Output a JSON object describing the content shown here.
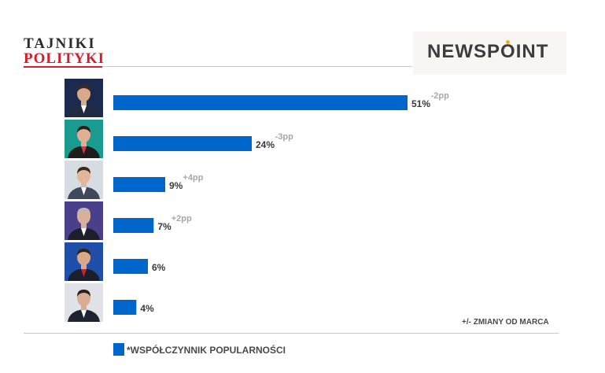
{
  "branding": {
    "left_logo_line1": "TAJNIKI",
    "left_logo_line2": "POLITYKI",
    "right_logo": "NEWSPOINT"
  },
  "chart_data": {
    "type": "bar",
    "orientation": "horizontal",
    "categories": [
      "",
      "",
      "",
      "",
      "",
      ""
    ],
    "values": [
      51,
      24,
      9,
      7,
      6,
      4
    ],
    "value_labels": [
      "51%",
      "24%",
      "9%",
      "7%",
      "6%",
      "4%"
    ],
    "changes": [
      "-2pp",
      "-3pp",
      "+4pp",
      "+2pp",
      "",
      ""
    ],
    "xlim": [
      0,
      55
    ],
    "grid": false,
    "bar_color": "#0066cc",
    "note": "+/- ZMIANY OD MARCA",
    "legend": [
      {
        "label": "*WSPÓŁCZYNNIK POPULARNOŚCI",
        "color": "#0066cc"
      }
    ],
    "legend_position": "bottom-left"
  },
  "photos": [
    {
      "icon": "person-photo-1-icon",
      "bg": "#1c2a4f",
      "skin": "#d9a98c",
      "hair": "#3a2a22",
      "suit": "#222a3d",
      "accent": "#ffffff"
    },
    {
      "icon": "person-photo-2-icon",
      "bg": "#1a9b8f",
      "skin": "#e0b095",
      "hair": "#2b1d18",
      "suit": "#1d1d1d",
      "accent": "#c43d4a"
    },
    {
      "icon": "person-photo-3-icon",
      "bg": "#d7dce2",
      "skin": "#e1b79c",
      "hair": "#3a2a1e",
      "suit": "#3e4a5c",
      "accent": "#ffffff"
    },
    {
      "icon": "person-photo-4-icon",
      "bg": "#4a3f8a",
      "skin": "#d8b09b",
      "hair": "#b9b9b9",
      "suit": "#1e1f2a",
      "accent": "#ffffff"
    },
    {
      "icon": "person-photo-5-icon",
      "bg": "#1f4fa8",
      "skin": "#d9a98c",
      "hair": "#2f2418",
      "suit": "#1b1f2b",
      "accent": "#c1272d"
    },
    {
      "icon": "person-photo-6-icon",
      "bg": "#dfe3e8",
      "skin": "#d9ad93",
      "hair": "#2b2118",
      "suit": "#1e2332",
      "accent": "#ffffff"
    }
  ]
}
